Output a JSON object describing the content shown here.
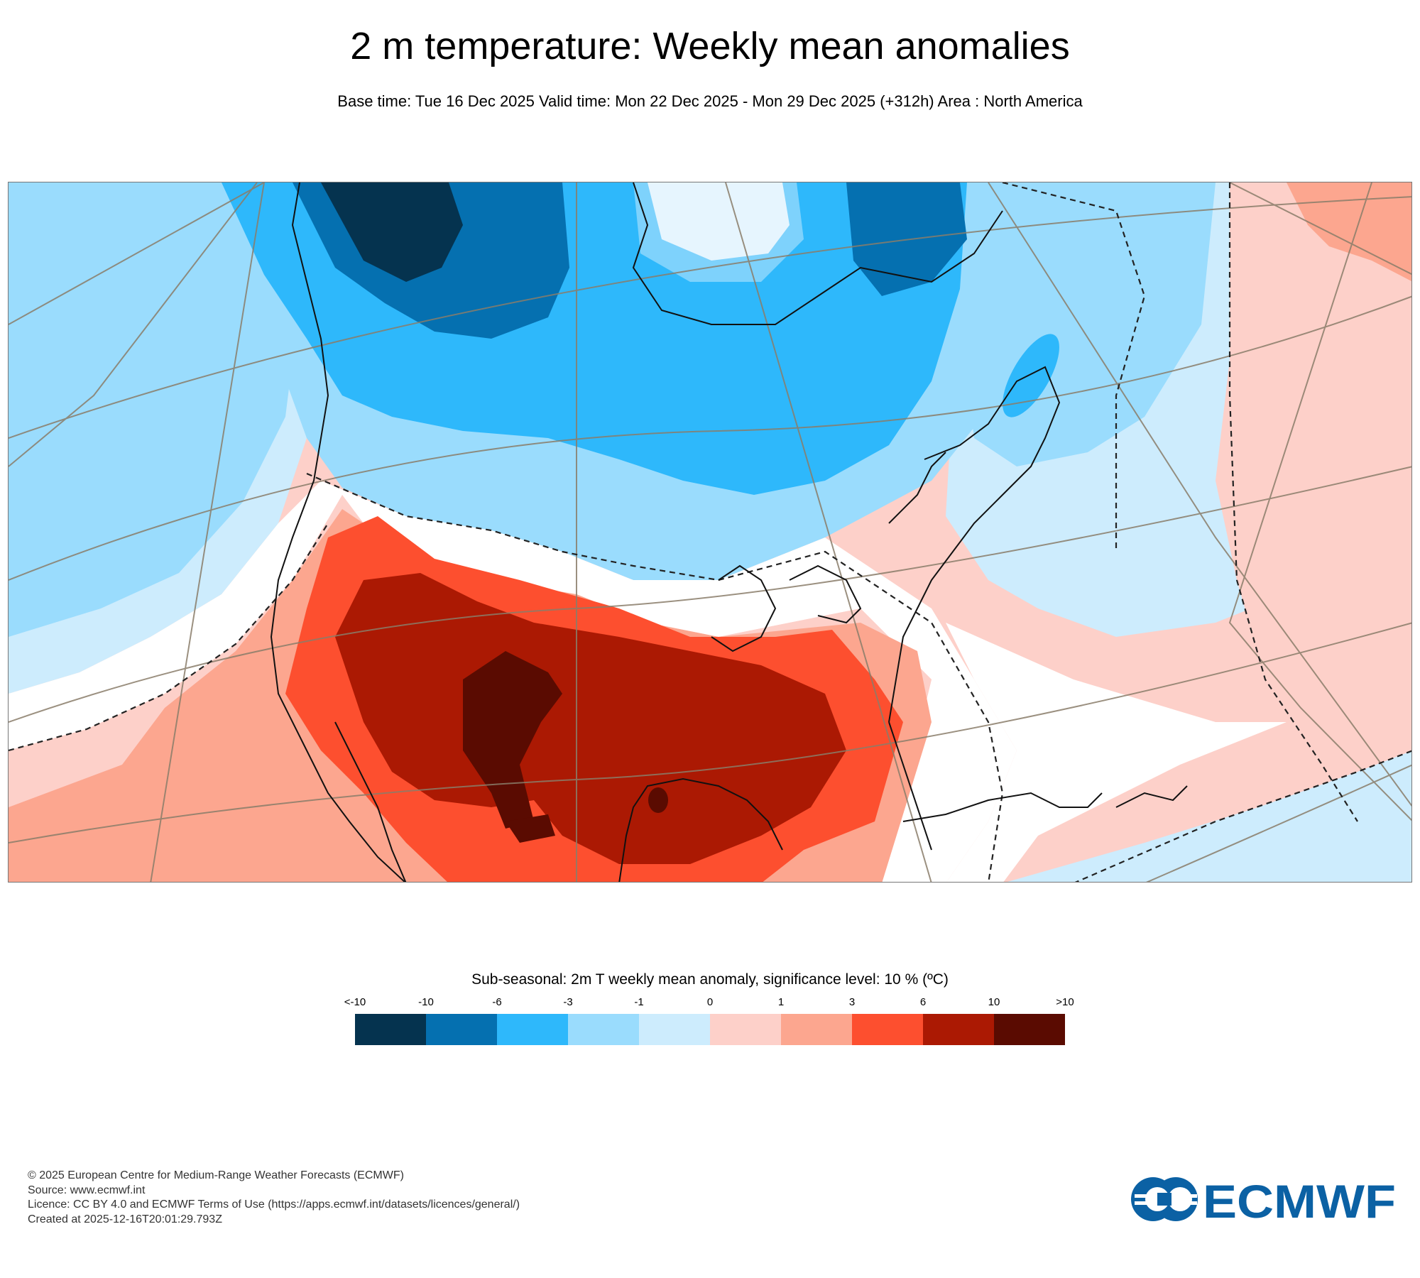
{
  "header": {
    "title": "2 m temperature: Weekly mean anomalies",
    "subtitle": "Base time: Tue 16 Dec 2025 Valid time: Mon 22 Dec 2025 - Mon 29 Dec 2025 (+312h) Area : North America"
  },
  "map": {
    "area": "North America",
    "colors": {
      "lt_minus10": "#05334f",
      "minus10_to_minus6": "#0570b0",
      "minus6_to_minus3": "#2eb8fb",
      "minus3_to_minus1": "#9adcfd",
      "minus1_to_0": "#cdecfd",
      "zero_to_1": "#fdd0c9",
      "1_to_3": "#fca68f",
      "3_to_6": "#fd4f2f",
      "6_to_10": "#ab1903",
      "gt_10": "#5a0b01",
      "land_outline": "#111111",
      "graticule": "#8a7d6a"
    }
  },
  "legend": {
    "title": "Sub-seasonal: 2m T weekly mean anomaly, significance level: 10 % (ºC)",
    "labels": [
      "<-10",
      "-10",
      "-6",
      "-3",
      "-1",
      "0",
      "1",
      "3",
      "6",
      "10",
      ">10"
    ],
    "colors": [
      "#05334f",
      "#0570b0",
      "#2eb8fb",
      "#9adcfd",
      "#cdecfd",
      "#fdd0c9",
      "#fca68f",
      "#fd4f2f",
      "#ab1903",
      "#5a0b01"
    ]
  },
  "footer": {
    "copyright": "© 2025 European Centre for Medium-Range Weather Forecasts (ECMWF)",
    "source": "Source: www.ecmwf.int",
    "licence": "Licence: CC BY 4.0 and ECMWF Terms of Use (https://apps.ecmwf.int/datasets/licences/general/)",
    "created": "Created at 2025-12-16T20:01:29.793Z"
  },
  "logo": {
    "text": "ECMWF",
    "color": "#0b61a4"
  }
}
